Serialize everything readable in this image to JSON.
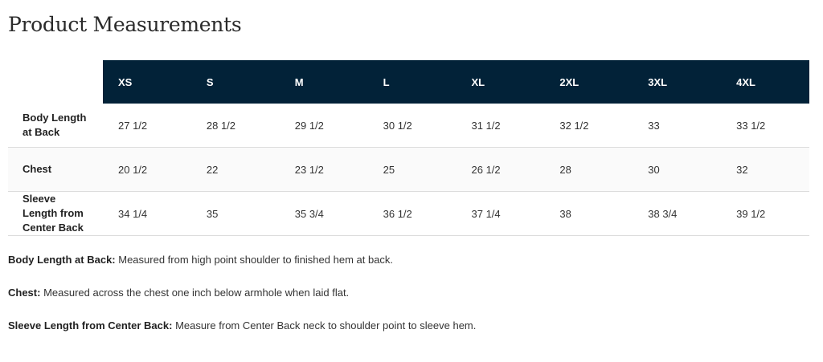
{
  "title": "Product Measurements",
  "colors": {
    "header_bg": "#022238",
    "header_text": "#ffffff"
  },
  "table": {
    "sizes": [
      "XS",
      "S",
      "M",
      "L",
      "XL",
      "2XL",
      "3XL",
      "4XL"
    ],
    "rows": [
      {
        "label": "Body Length at Back",
        "values": [
          "27 1/2",
          "28 1/2",
          "29 1/2",
          "30 1/2",
          "31 1/2",
          "32 1/2",
          "33",
          "33 1/2"
        ]
      },
      {
        "label": "Chest",
        "values": [
          "20 1/2",
          "22",
          "23 1/2",
          "25",
          "26 1/2",
          "28",
          "30",
          "32"
        ]
      },
      {
        "label": "Sleeve Length from Center Back",
        "values": [
          "34 1/4",
          "35",
          "35 3/4",
          "36 1/2",
          "37 1/4",
          "38",
          "38 3/4",
          "39 1/2"
        ]
      }
    ]
  },
  "notes": [
    {
      "term": "Body Length at Back:",
      "text": " Measured from high point shoulder to finished hem at back."
    },
    {
      "term": "Chest:",
      "text": " Measured across the chest one inch below armhole when laid flat."
    },
    {
      "term": "Sleeve Length from Center Back:",
      "text": " Measure from Center Back neck to shoulder point to sleeve hem."
    }
  ]
}
